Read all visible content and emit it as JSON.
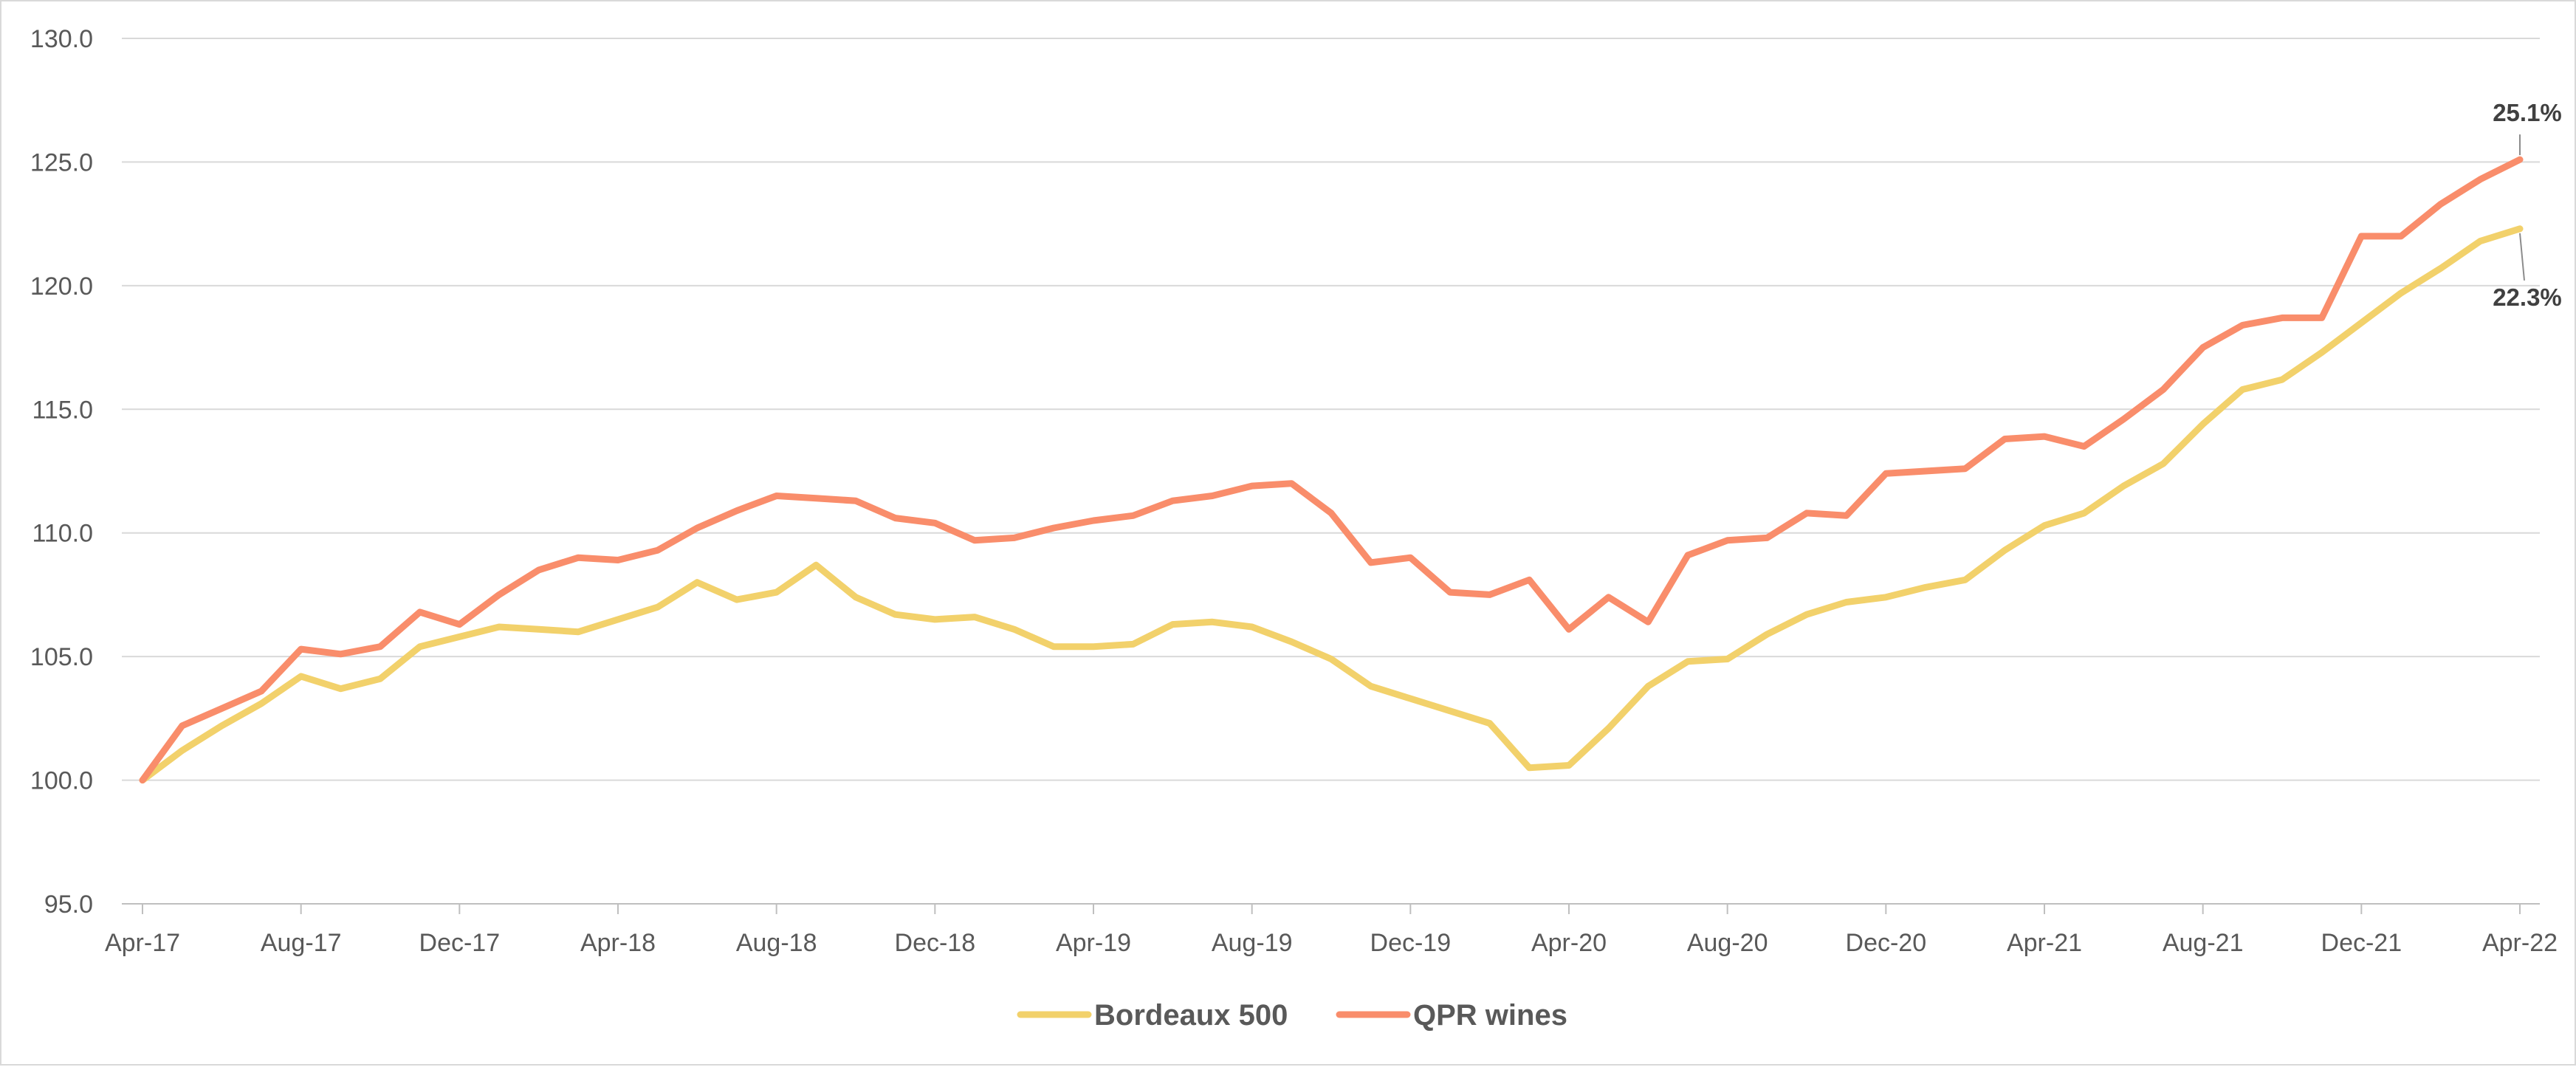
{
  "chart_data": {
    "type": "line",
    "title": "",
    "xlabel": "",
    "ylabel": "",
    "ylim": [
      95,
      130
    ],
    "yticks": [
      "95.0",
      "100.0",
      "105.0",
      "110.0",
      "115.0",
      "120.0",
      "125.0",
      "130.0"
    ],
    "xticks": [
      "Apr-17",
      "Aug-17",
      "Dec-17",
      "Apr-18",
      "Aug-18",
      "Dec-18",
      "Apr-19",
      "Aug-19",
      "Dec-19",
      "Apr-20",
      "Aug-20",
      "Dec-20",
      "Apr-21",
      "Aug-21",
      "Dec-21",
      "Apr-22"
    ],
    "x": [
      "Apr-17",
      "May-17",
      "Jun-17",
      "Jul-17",
      "Aug-17",
      "Sep-17",
      "Oct-17",
      "Nov-17",
      "Dec-17",
      "Jan-18",
      "Feb-18",
      "Mar-18",
      "Apr-18",
      "May-18",
      "Jun-18",
      "Jul-18",
      "Aug-18",
      "Sep-18",
      "Oct-18",
      "Nov-18",
      "Dec-18",
      "Jan-19",
      "Feb-19",
      "Mar-19",
      "Apr-19",
      "May-19",
      "Jun-19",
      "Jul-19",
      "Aug-19",
      "Sep-19",
      "Oct-19",
      "Nov-19",
      "Dec-19",
      "Jan-20",
      "Feb-20",
      "Mar-20",
      "Apr-20",
      "May-20",
      "Jun-20",
      "Jul-20",
      "Aug-20",
      "Sep-20",
      "Oct-20",
      "Nov-20",
      "Dec-20",
      "Jan-21",
      "Feb-21",
      "Mar-21",
      "Apr-21",
      "May-21",
      "Jun-21",
      "Jul-21",
      "Aug-21",
      "Sep-21",
      "Oct-21",
      "Nov-21",
      "Dec-21",
      "Jan-22",
      "Feb-22",
      "Mar-22",
      "Apr-22"
    ],
    "grid": true,
    "legend_position": "bottom",
    "series": [
      {
        "name": "Bordeaux 500",
        "color": "#f2d16b",
        "values": [
          100.0,
          101.2,
          102.2,
          103.1,
          104.2,
          103.7,
          104.1,
          105.4,
          105.8,
          106.2,
          106.1,
          106.0,
          106.5,
          107.0,
          108.0,
          107.3,
          107.6,
          108.7,
          107.4,
          106.7,
          106.5,
          106.6,
          106.1,
          105.4,
          105.4,
          105.5,
          106.3,
          106.4,
          106.2,
          105.6,
          104.9,
          103.8,
          103.3,
          102.8,
          102.3,
          100.5,
          100.6,
          102.1,
          103.8,
          104.8,
          104.9,
          105.9,
          106.7,
          107.2,
          107.4,
          107.8,
          108.1,
          109.3,
          110.3,
          110.8,
          111.9,
          112.8,
          114.4,
          115.8,
          116.2,
          117.3,
          118.5,
          119.7,
          120.7,
          121.8,
          122.3
        ]
      },
      {
        "name": "QPR wines",
        "color": "#f98d6b",
        "values": [
          100.0,
          102.2,
          102.9,
          103.6,
          105.3,
          105.1,
          105.4,
          106.8,
          106.3,
          107.5,
          108.5,
          109.0,
          108.9,
          109.3,
          110.2,
          110.9,
          111.5,
          111.4,
          111.3,
          110.6,
          110.4,
          109.7,
          109.8,
          110.2,
          110.5,
          110.7,
          111.3,
          111.5,
          111.9,
          112.0,
          110.8,
          108.8,
          109.0,
          107.6,
          107.5,
          108.1,
          106.1,
          107.4,
          106.4,
          109.1,
          109.7,
          109.8,
          110.8,
          110.7,
          112.4,
          112.5,
          112.6,
          113.8,
          113.9,
          113.5,
          114.6,
          115.8,
          117.5,
          118.4,
          118.7,
          118.7,
          122.0,
          122.0,
          123.3,
          124.3,
          125.1
        ]
      }
    ],
    "annotations": [
      {
        "series": "QPR wines",
        "text": "25.1%"
      },
      {
        "series": "Bordeaux 500",
        "text": "22.3%"
      }
    ]
  }
}
